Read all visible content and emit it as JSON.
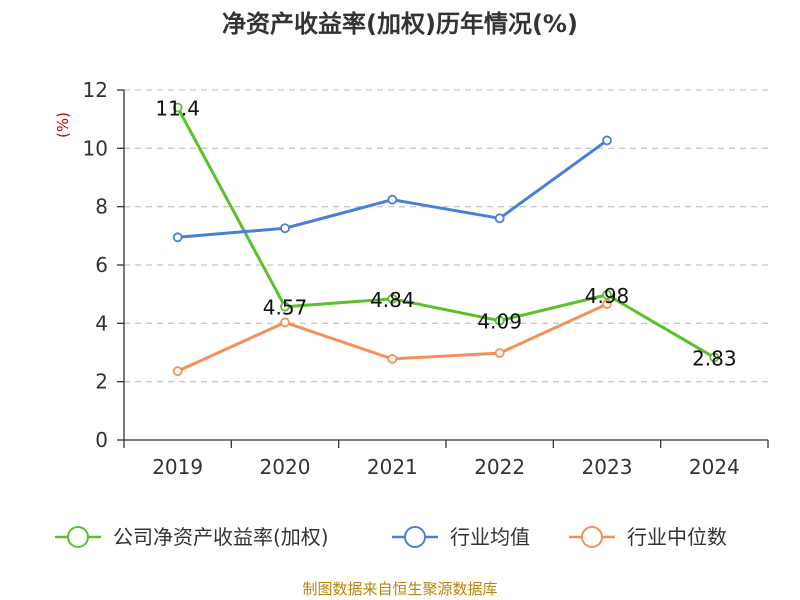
{
  "chart_data": {
    "type": "line",
    "title": "净资产收益率(加权)历年情况(%)",
    "ylabel": "(%)",
    "xlabel": "",
    "categories": [
      "2019",
      "2020",
      "2021",
      "2022",
      "2023",
      "2024"
    ],
    "ylim": [
      0,
      12
    ],
    "yticks": [
      0,
      2,
      4,
      6,
      8,
      10,
      12
    ],
    "grid": true,
    "legend_position": "bottom",
    "series": [
      {
        "name": "公司净资产收益率(加权)",
        "color": "#5bc02a",
        "values": [
          11.4,
          4.57,
          4.84,
          4.09,
          4.98,
          2.83
        ],
        "labels": [
          "11.4",
          "4.57",
          "4.84",
          "4.09",
          "4.98",
          "2.83"
        ]
      },
      {
        "name": "行业均值",
        "color": "#4a7fd8",
        "values": [
          6.95,
          7.26,
          8.24,
          7.6,
          10.27,
          null
        ]
      },
      {
        "name": "行业中位数",
        "color": "#f5905a",
        "values": [
          2.36,
          4.03,
          2.78,
          2.98,
          4.66,
          null
        ]
      }
    ],
    "source": "制图数据来自恒生聚源数据库"
  }
}
